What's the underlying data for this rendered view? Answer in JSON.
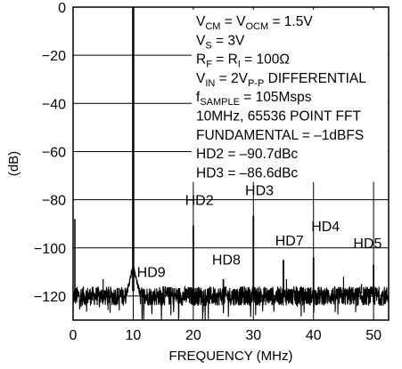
{
  "chart_data": {
    "type": "line",
    "title": "",
    "xlabel": "FREQUENCY (MHz)",
    "ylabel": "(dB)",
    "xlim": [
      0,
      52.5
    ],
    "ylim": [
      -130,
      0
    ],
    "xticks": [
      0,
      10,
      20,
      30,
      40,
      50
    ],
    "yticks": [
      0,
      -20,
      -40,
      -60,
      -80,
      -100,
      -120
    ],
    "grid": true,
    "noise_floor_dB": -120,
    "fundamental": {
      "x": 10,
      "y": -1
    },
    "spurs": [
      {
        "label": "HD2",
        "x": 20,
        "y": -90.7
      },
      {
        "label": "HD3",
        "x": 30,
        "y": -86.6
      },
      {
        "label": "HD4",
        "x": 40,
        "y": -104
      },
      {
        "label": "HD5",
        "x": 50,
        "y": -107
      },
      {
        "label": "HD7",
        "x": 35,
        "y": -105
      },
      {
        "label": "HD8",
        "x": 25,
        "y": -113
      },
      {
        "label": "HD9",
        "x": 15,
        "y": -116
      }
    ],
    "annotations": [
      {
        "main": "V",
        "sub": "CM",
        "rest": " = V",
        "sub2": "OCM",
        "rest2": " = 1.5V"
      },
      {
        "main": "V",
        "sub": "S",
        "rest": " = 3V",
        "sub2": "",
        "rest2": ""
      },
      {
        "main": "R",
        "sub": "F",
        "rest": " = R",
        "sub2": "I",
        "rest2": " = 100Ω"
      },
      {
        "main": "V",
        "sub": "IN",
        "rest": " = 2V",
        "sub2": "P-P",
        "rest2": " DIFFERENTIAL"
      },
      {
        "main": "f",
        "sub": "SAMPLE",
        "rest": " = 105Msps",
        "sub2": "",
        "rest2": ""
      },
      {
        "main": "10MHz, 65536 POINT FFT",
        "sub": "",
        "rest": "",
        "sub2": "",
        "rest2": ""
      },
      {
        "main": "FUNDAMENTAL = –1dBFS",
        "sub": "",
        "rest": "",
        "sub2": "",
        "rest2": ""
      },
      {
        "main": "HD2 = –90.7dBc",
        "sub": "",
        "rest": "",
        "sub2": "",
        "rest2": ""
      },
      {
        "main": "HD3 = –86.6dBc",
        "sub": "",
        "rest": "",
        "sub2": "",
        "rest2": ""
      }
    ]
  }
}
